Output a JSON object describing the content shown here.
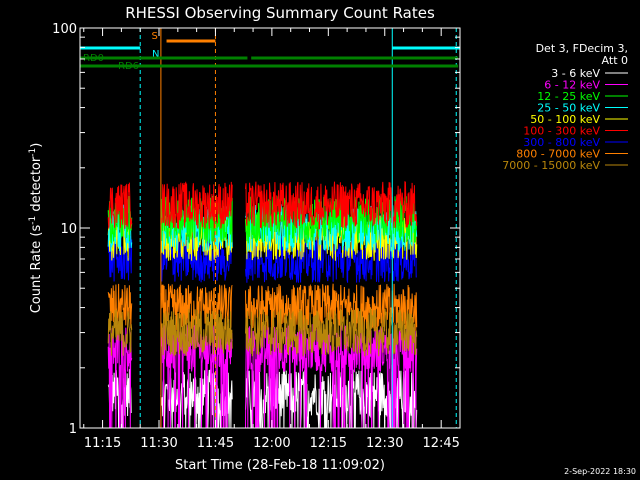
{
  "chart_data": {
    "type": "line",
    "title": "RHESSI Observing Summary Count Rates",
    "xlabel": "Start Time (28-Feb-18 11:09:02)",
    "ylabel_main": "Count Rate (s",
    "ylabel_sup1": "-1",
    "ylabel_mid": " detector",
    "ylabel_sup2": "-1",
    "ylabel_end": ")",
    "y_scale": "log",
    "ylim": [
      1,
      100
    ],
    "xlim_minutes": [
      669.0,
      770.0
    ],
    "x_ticks": [
      {
        "label": "11:15",
        "minutes": 675
      },
      {
        "label": "11:30",
        "minutes": 690
      },
      {
        "label": "11:45",
        "minutes": 705
      },
      {
        "label": "12:00",
        "minutes": 720
      },
      {
        "label": "12:15",
        "minutes": 735
      },
      {
        "label": "12:30",
        "minutes": 750
      },
      {
        "label": "12:45",
        "minutes": 765
      }
    ],
    "y_ticks": [
      {
        "label": "1",
        "value": 1
      },
      {
        "label": "10",
        "value": 10
      },
      {
        "label": "100",
        "value": 100
      }
    ],
    "legend_header": [
      "Det 3, FDecim 3,",
      "Att 0"
    ],
    "legend_position": "right",
    "series": [
      {
        "name": "3 - 6 keV",
        "color": "#ffffff",
        "typical": 1.5
      },
      {
        "name": "6 - 12 keV",
        "color": "#ff00ff",
        "typical": 2.5
      },
      {
        "name": "12 - 25 keV",
        "color": "#00ff00",
        "typical": 11
      },
      {
        "name": "25 - 50 keV",
        "color": "#00ffff",
        "typical": 10
      },
      {
        "name": "50 - 100 keV",
        "color": "#ffff00",
        "typical": 9
      },
      {
        "name": "100 - 300 keV",
        "color": "#ff0000",
        "typical": 13
      },
      {
        "name": "300 - 800 keV",
        "color": "#0000ff",
        "typical": 7
      },
      {
        "name": "800 - 7000 keV",
        "color": "#ff8000",
        "typical": 4
      },
      {
        "name": "7000 - 15000 keV",
        "color": "#b8860b",
        "typical": 3
      }
    ],
    "data_intervals_minutes": [
      [
        676.5,
        682.8
      ],
      [
        690.5,
        709.5
      ],
      [
        713.0,
        758.5
      ]
    ],
    "annotations": {
      "night_bars": [
        {
          "label": "N",
          "start": 669.0,
          "end": 685.0,
          "color": "#00ffff"
        },
        {
          "label": "",
          "start": 752.0,
          "end": 770.0,
          "color": "#00ffff"
        }
      ],
      "saa_bars": [
        {
          "label": "S",
          "start": 692.0,
          "end": 705.0,
          "color": "#ff8000"
        }
      ],
      "decimation_bars": [
        {
          "label": "RD0",
          "start": 669.0,
          "end": 713.5,
          "color": "#008000"
        },
        {
          "label": "",
          "start": 714.5,
          "end": 769.5,
          "color": "#008000"
        },
        {
          "label": "RD6",
          "start": 669.0,
          "end": 769.5,
          "color": "#008000"
        }
      ],
      "vlines": [
        {
          "minutes": 685.0,
          "color": "#00ffff",
          "dashed": true
        },
        {
          "minutes": 690.5,
          "color": "#ff8000",
          "dashed": false
        },
        {
          "minutes": 705.0,
          "color": "#ff8000",
          "dashed": true
        },
        {
          "minutes": 752.0,
          "color": "#00ffff",
          "dashed": false
        },
        {
          "minutes": 769.0,
          "color": "#00ffff",
          "dashed": true
        }
      ]
    },
    "footer_date": "2-Sep-2022 18:30"
  }
}
